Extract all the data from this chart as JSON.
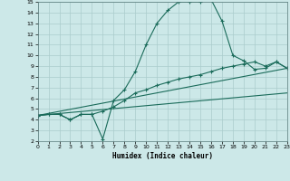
{
  "xlabel": "Humidex (Indice chaleur)",
  "bg_color": "#cce8e8",
  "grid_color": "#aacccc",
  "line_color": "#1a6b5a",
  "xlim": [
    0,
    23
  ],
  "ylim": [
    2,
    15
  ],
  "xticks": [
    0,
    1,
    2,
    3,
    4,
    5,
    6,
    7,
    8,
    9,
    10,
    11,
    12,
    13,
    14,
    15,
    16,
    17,
    18,
    19,
    20,
    21,
    22,
    23
  ],
  "yticks": [
    2,
    3,
    4,
    5,
    6,
    7,
    8,
    9,
    10,
    11,
    12,
    13,
    14,
    15
  ],
  "curve1_x": [
    0,
    1,
    2,
    3,
    4,
    5,
    6,
    7,
    8,
    9,
    10,
    11,
    12,
    13,
    14,
    15,
    16,
    17,
    18,
    19,
    20,
    21,
    22,
    23
  ],
  "curve1_y": [
    4.4,
    4.5,
    4.5,
    4.0,
    4.5,
    4.5,
    2.2,
    5.8,
    6.8,
    8.5,
    11.0,
    13.0,
    14.2,
    15.0,
    15.0,
    15.0,
    15.2,
    13.2,
    10.0,
    9.5,
    8.7,
    8.8,
    9.4,
    8.8
  ],
  "curve2_x": [
    0,
    1,
    2,
    3,
    4,
    5,
    6,
    7,
    8,
    9,
    10,
    11,
    12,
    13,
    14,
    15,
    16,
    17,
    18,
    19,
    20,
    21,
    22,
    23
  ],
  "curve2_y": [
    4.4,
    4.5,
    4.5,
    4.0,
    4.5,
    4.5,
    4.8,
    5.2,
    5.8,
    6.5,
    6.8,
    7.2,
    7.5,
    7.8,
    8.0,
    8.2,
    8.5,
    8.8,
    9.0,
    9.2,
    9.4,
    9.0,
    9.4,
    8.8
  ],
  "line3_x": [
    0,
    23
  ],
  "line3_y": [
    4.4,
    8.8
  ],
  "line4_x": [
    0,
    23
  ],
  "line4_y": [
    4.4,
    6.5
  ]
}
